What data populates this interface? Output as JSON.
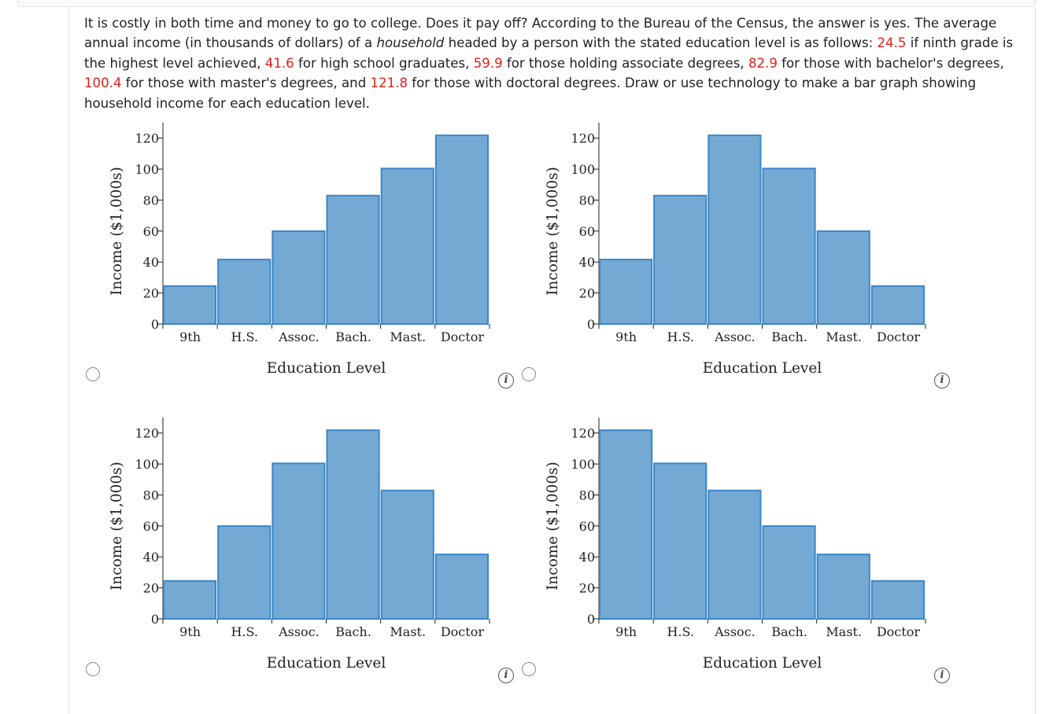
{
  "question": {
    "part1": "It is costly in both time and money to go to college. Does it pay off? According to the Bureau of the Census, the answer is yes. The average annual income (in thousands of dollars) of a ",
    "emph": "household",
    "part2": " headed by a person with the stated education level is as follows: ",
    "v1": "24.5",
    "t1": " if ninth grade is the highest level achieved, ",
    "v2": "41.6",
    "t2": " for high school graduates, ",
    "v3": "59.9",
    "t3": " for those holding associate degrees, ",
    "v4": "82.9",
    "t4": " for those with bachelor's degrees, ",
    "v5": "100.4",
    "t5": " for those with master's degrees, and ",
    "v6": "121.8",
    "t6": " for those with doctoral degrees. Draw or use technology to make a bar graph showing household income for each education level."
  },
  "info_glyph": "i",
  "colors": {
    "bar_fill": "#74a9d4",
    "bar_stroke": "#3a86c8",
    "highlight": "#e0211b"
  },
  "chart_data": [
    {
      "type": "bar",
      "categories": [
        "9th",
        "H.S.",
        "Assoc.",
        "Bach.",
        "Mast.",
        "Doctor"
      ],
      "values": [
        24.5,
        41.6,
        59.9,
        82.9,
        100.4,
        121.8
      ],
      "xlabel": "Education Level",
      "ylabel": "Income ($1,000s)",
      "ylim": [
        0,
        130
      ],
      "yticks": [
        0,
        20,
        40,
        60,
        80,
        100,
        120
      ]
    },
    {
      "type": "bar",
      "categories": [
        "9th",
        "H.S.",
        "Assoc.",
        "Bach.",
        "Mast.",
        "Doctor"
      ],
      "values": [
        41.6,
        82.9,
        121.8,
        100.4,
        59.9,
        24.5
      ],
      "xlabel": "Education Level",
      "ylabel": "Income ($1,000s)",
      "ylim": [
        0,
        130
      ],
      "yticks": [
        0,
        20,
        40,
        60,
        80,
        100,
        120
      ]
    },
    {
      "type": "bar",
      "categories": [
        "9th",
        "H.S.",
        "Assoc.",
        "Bach.",
        "Mast.",
        "Doctor"
      ],
      "values": [
        24.5,
        59.9,
        100.4,
        121.8,
        82.9,
        41.6
      ],
      "xlabel": "Education Level",
      "ylabel": "Income ($1,000s)",
      "ylim": [
        0,
        130
      ],
      "yticks": [
        0,
        20,
        40,
        60,
        80,
        100,
        120
      ]
    },
    {
      "type": "bar",
      "categories": [
        "9th",
        "H.S.",
        "Assoc.",
        "Bach.",
        "Mast.",
        "Doctor"
      ],
      "values": [
        121.8,
        100.4,
        82.9,
        59.9,
        41.6,
        24.5
      ],
      "xlabel": "Education Level",
      "ylabel": "Income ($1,000s)",
      "ylim": [
        0,
        130
      ],
      "yticks": [
        0,
        20,
        40,
        60,
        80,
        100,
        120
      ]
    }
  ]
}
